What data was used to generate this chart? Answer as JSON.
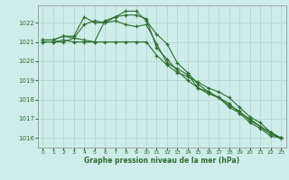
{
  "xlabel": "Graphe pression niveau de la mer (hPa)",
  "bg_color": "#ceecea",
  "grid_color": "#b2d8d4",
  "line_color": "#2d6e2d",
  "ylim": [
    1015.5,
    1022.9
  ],
  "xlim": [
    -0.5,
    23.5
  ],
  "yticks": [
    1016,
    1017,
    1018,
    1019,
    1020,
    1021,
    1022
  ],
  "xticks": [
    0,
    1,
    2,
    3,
    4,
    5,
    6,
    7,
    8,
    9,
    10,
    11,
    12,
    13,
    14,
    15,
    16,
    17,
    18,
    19,
    20,
    21,
    22,
    23
  ],
  "series": [
    [
      1021.1,
      1021.1,
      1021.3,
      1021.2,
      1021.9,
      1022.1,
      1022.0,
      1022.3,
      1022.6,
      1022.6,
      1022.1,
      1021.4,
      1020.9,
      1019.9,
      1019.4,
      1018.8,
      1018.4,
      1018.1,
      1017.6,
      1017.3,
      1016.8,
      1016.5,
      1016.1,
      1016.0
    ],
    [
      1021.1,
      1021.1,
      1021.3,
      1021.3,
      1022.3,
      1022.0,
      1022.0,
      1022.1,
      1021.9,
      1021.8,
      1021.9,
      1020.9,
      1019.9,
      1019.6,
      1019.3,
      1018.6,
      1018.3,
      1018.1,
      1017.8,
      1017.3,
      1017.0,
      1016.6,
      1016.3,
      1016.0
    ],
    [
      1021.0,
      1021.0,
      1021.1,
      1021.0,
      1021.0,
      1021.0,
      1021.0,
      1021.0,
      1021.0,
      1021.0,
      1021.0,
      1020.3,
      1019.8,
      1019.4,
      1019.2,
      1018.9,
      1018.6,
      1018.4,
      1018.1,
      1017.6,
      1017.1,
      1016.8,
      1016.3,
      1016.0
    ],
    [
      1021.0,
      1021.0,
      1021.0,
      1021.2,
      1021.1,
      1021.0,
      1022.1,
      1022.3,
      1022.4,
      1022.4,
      1022.2,
      1020.7,
      1020.1,
      1019.5,
      1019.0,
      1018.6,
      1018.4,
      1018.1,
      1017.7,
      1017.4,
      1016.9,
      1016.6,
      1016.2,
      1016.0
    ]
  ]
}
